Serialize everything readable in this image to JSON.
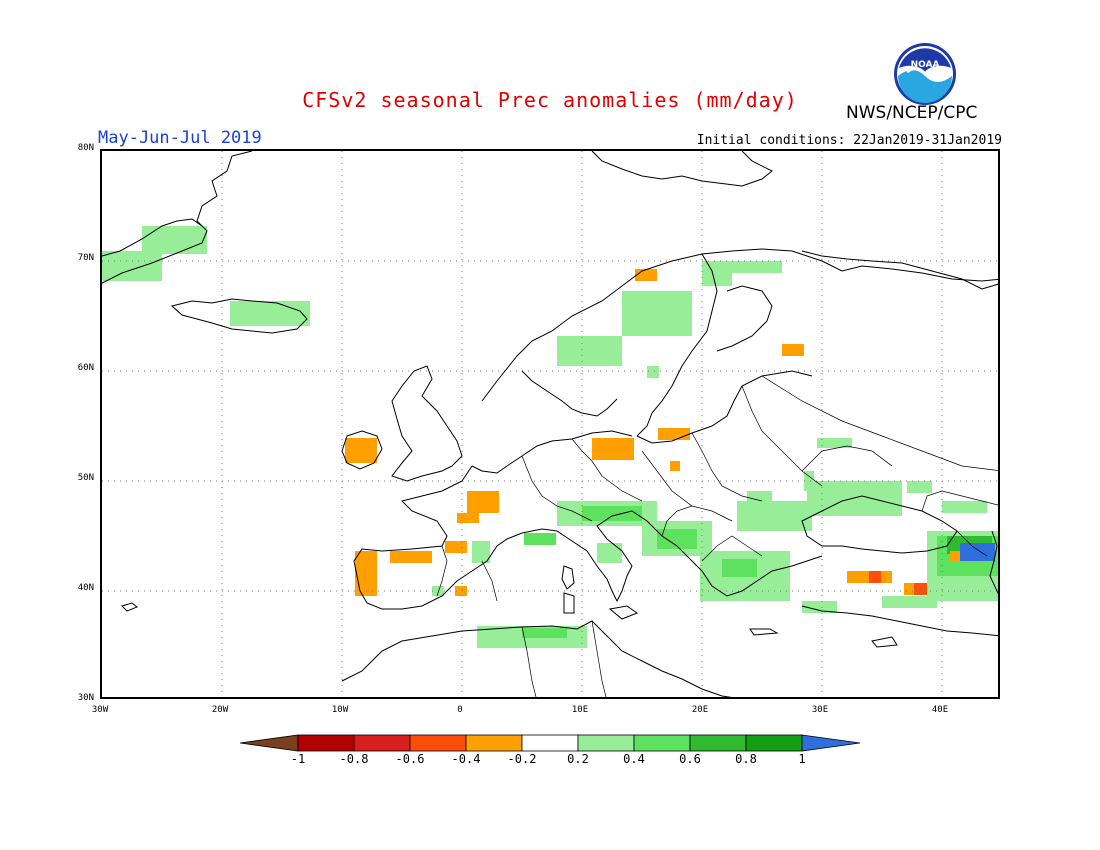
{
  "header": {
    "title": "CFSv2 seasonal Prec anomalies (mm/day)",
    "season": "May-Jun-Jul 2019",
    "initial_conditions": "Initial conditions: 22Jan2019-31Jan2019",
    "agency": "NWS/NCEP/CPC",
    "logo_text": "NOAA"
  },
  "map": {
    "lat_labels": [
      "80N",
      "70N",
      "60N",
      "50N",
      "40N",
      "30N"
    ],
    "lon_labels": [
      "30W",
      "20W",
      "10W",
      "0",
      "10E",
      "20E",
      "30E",
      "40E"
    ],
    "grid": "dotted",
    "anomaly_regions": [
      {
        "region": "Greenland east coast",
        "category": "wet",
        "level": "0.2 to 0.4"
      },
      {
        "region": "Iceland",
        "category": "wet",
        "level": "0.2 to 0.4"
      },
      {
        "region": "Norway",
        "category": "wet",
        "level": "0.2 to 0.4"
      },
      {
        "region": "northern Norway",
        "category": "dry",
        "level": "-0.4 to -0.2"
      },
      {
        "region": "southern Finland",
        "category": "dry",
        "level": "-0.4 to -0.2"
      },
      {
        "region": "Ireland",
        "category": "dry",
        "level": "-0.4 to -0.2"
      },
      {
        "region": "northern France",
        "category": "dry",
        "level": "-0.4 to -0.2"
      },
      {
        "region": "northern Spain",
        "category": "dry",
        "level": "-0.4 to -0.2"
      },
      {
        "region": "Portugal",
        "category": "dry",
        "level": "-0.4 to -0.2"
      },
      {
        "region": "eastern Germany",
        "category": "dry",
        "level": "-0.4 to -0.2"
      },
      {
        "region": "Poland",
        "category": "dry",
        "level": "-0.4 to -0.2"
      },
      {
        "region": "Alps and Balkans",
        "category": "wet",
        "level": "0.2 to 0.6"
      },
      {
        "region": "Algeria",
        "category": "wet",
        "level": "0.2 to 0.4"
      },
      {
        "region": "Ukraine and Black Sea",
        "category": "wet",
        "level": "0.2 to 0.4"
      },
      {
        "region": "Turkey",
        "category": "dry",
        "level": "-0.6 to -0.2"
      },
      {
        "region": "Caucasus",
        "category": "wet",
        "level": "0.4 to 1"
      }
    ]
  },
  "colorbar": {
    "labels": [
      "-1",
      "-0.8",
      "-0.6",
      "-0.4",
      "-0.2",
      "0.2",
      "0.4",
      "0.6",
      "0.8",
      "1"
    ],
    "colors": [
      "#7a3f1e",
      "#b20000",
      "#d81e1e",
      "#ff4e0a",
      "#ffa000",
      "#ffffff",
      "#98ee98",
      "#5ee15e",
      "#2fba2f",
      "#139e13",
      "#2e6fdc"
    ]
  },
  "colors": {
    "title": "#e00000",
    "season": "#1a3fd8",
    "land_outline": "#000000"
  }
}
